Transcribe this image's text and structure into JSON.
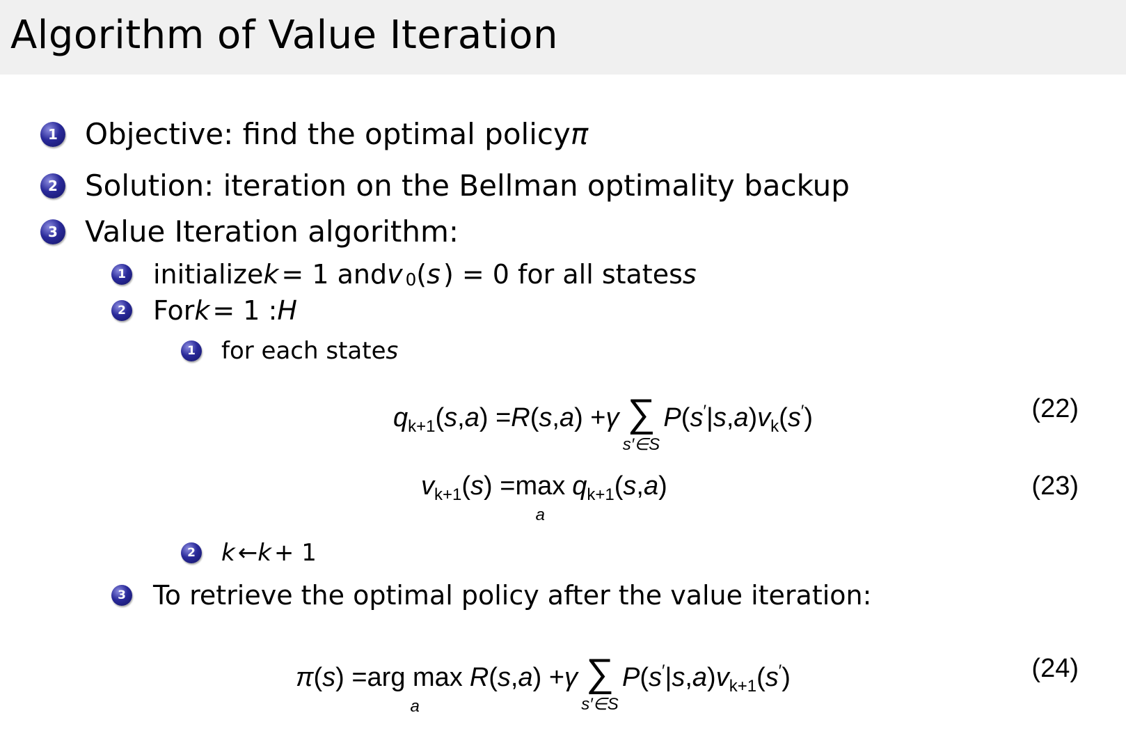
{
  "title": "Algorithm of Value Iteration",
  "items": [
    {
      "num": "1",
      "text": "Objective:  find the optimal policy ",
      "math": "π"
    },
    {
      "num": "2",
      "text": "Solution:  iteration on the Bellman optimality backup",
      "math": ""
    },
    {
      "num": "3",
      "text": "Value Iteration algorithm:",
      "math": ""
    }
  ],
  "subitems": [
    {
      "num": "1",
      "parts": [
        [
          "initialize ",
          ""
        ],
        [
          "k",
          "m"
        ],
        [
          " = 1 and ",
          ""
        ],
        [
          "v",
          "m"
        ],
        [
          "0",
          "sub"
        ],
        [
          "(",
          ""
        ],
        [
          "s",
          "m"
        ],
        [
          ") = 0 for all states ",
          ""
        ],
        [
          "s",
          "m"
        ]
      ]
    },
    {
      "num": "2",
      "parts": [
        [
          "For ",
          ""
        ],
        [
          "k",
          "m"
        ],
        [
          " = 1 : ",
          ""
        ],
        [
          "H",
          "m"
        ]
      ]
    },
    {
      "num": "3",
      "parts": [
        [
          "To retrieve the optimal policy after the value iteration:",
          ""
        ]
      ]
    }
  ],
  "subsubitems": [
    {
      "num": "1",
      "parts": [
        [
          "for each state ",
          ""
        ],
        [
          "s",
          "m"
        ]
      ]
    },
    {
      "num": "2",
      "parts": [
        [
          "k",
          "m"
        ],
        [
          " ← ",
          ""
        ],
        [
          "k",
          "m"
        ],
        [
          " + 1",
          ""
        ]
      ]
    }
  ],
  "equations": [
    {
      "number": "(22)",
      "segments": [
        [
          "q",
          "i"
        ],
        [
          "k+1",
          "sub"
        ],
        [
          "(",
          "r"
        ],
        [
          "s",
          "i"
        ],
        [
          ", ",
          "r"
        ],
        [
          "a",
          "i"
        ],
        [
          ") =",
          "r"
        ],
        [
          "R",
          "i"
        ],
        [
          "(",
          "r"
        ],
        [
          "s",
          "i"
        ],
        [
          ", ",
          "r"
        ],
        [
          "a",
          "i"
        ],
        [
          ") + ",
          "r"
        ],
        [
          "γ",
          "i"
        ],
        [
          "sum",
          "s′∈S"
        ],
        [
          "P",
          "i"
        ],
        [
          "(",
          "r"
        ],
        [
          "s",
          "i"
        ],
        [
          "′",
          "sup"
        ],
        [
          "|",
          "r"
        ],
        [
          "s",
          "i"
        ],
        [
          ", ",
          "r"
        ],
        [
          "a",
          "i"
        ],
        [
          ")",
          "r"
        ],
        [
          "v",
          "i"
        ],
        [
          "k",
          "sub"
        ],
        [
          "(",
          "r"
        ],
        [
          "s",
          "i"
        ],
        [
          "′",
          "sup"
        ],
        [
          ")",
          "r"
        ]
      ]
    },
    {
      "number": "(23)",
      "segments": [
        [
          "v",
          "i"
        ],
        [
          "k+1",
          "sub"
        ],
        [
          "(",
          "r"
        ],
        [
          "s",
          "i"
        ],
        [
          ") = ",
          "r"
        ],
        [
          "op",
          "max",
          "a"
        ],
        [
          "q",
          "i"
        ],
        [
          "k+1",
          "sub"
        ],
        [
          "(",
          "r"
        ],
        [
          "s",
          "i"
        ],
        [
          ", ",
          "r"
        ],
        [
          "a",
          "i"
        ],
        [
          ")",
          "r"
        ]
      ]
    },
    {
      "number": "(24)",
      "segments": [
        [
          "π",
          "i"
        ],
        [
          "(",
          "r"
        ],
        [
          "s",
          "i"
        ],
        [
          ") = ",
          "r"
        ],
        [
          "op",
          "arg max",
          "a"
        ],
        [
          "R",
          "i"
        ],
        [
          "(",
          "r"
        ],
        [
          "s",
          "i"
        ],
        [
          ", ",
          "r"
        ],
        [
          "a",
          "i"
        ],
        [
          ") + ",
          "r"
        ],
        [
          "γ",
          "i"
        ],
        [
          "sum",
          "s′∈S"
        ],
        [
          "P",
          "i"
        ],
        [
          "(",
          "r"
        ],
        [
          "s",
          "i"
        ],
        [
          "′",
          "sup"
        ],
        [
          "|",
          "r"
        ],
        [
          "s",
          "i"
        ],
        [
          ", ",
          "r"
        ],
        [
          "a",
          "i"
        ],
        [
          ")",
          "r"
        ],
        [
          "v",
          "i"
        ],
        [
          "k+1",
          "sub"
        ],
        [
          "(",
          "r"
        ],
        [
          "s",
          "i"
        ],
        [
          "′",
          "sup"
        ],
        [
          ")",
          "r"
        ]
      ]
    }
  ],
  "colors": {
    "title_bar": "#f0f0f0",
    "bullet": "#2a2a9a"
  }
}
